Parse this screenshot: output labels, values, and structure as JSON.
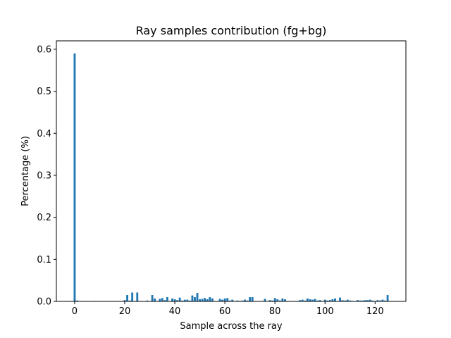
{
  "chart_data": {
    "type": "bar",
    "title": "Ray samples contribution (fg+bg)",
    "xlabel": "Sample across the ray",
    "ylabel": "Percentage (%)",
    "xlim": [
      -7.3,
      132.3
    ],
    "ylim": [
      0,
      0.62
    ],
    "xticks": [
      0,
      20,
      40,
      60,
      80,
      100,
      120
    ],
    "yticks": [
      0.0,
      0.1,
      0.2,
      0.3,
      0.4,
      0.5,
      0.6
    ],
    "xtick_labels": [
      "0",
      "20",
      "40",
      "60",
      "80",
      "100",
      "120"
    ],
    "ytick_labels": [
      "0.0",
      "0.1",
      "0.2",
      "0.3",
      "0.4",
      "0.5",
      "0.6"
    ],
    "bar_color": "#1f77b4",
    "grid": false,
    "legend": "none",
    "x": [
      0,
      1,
      2,
      3,
      4,
      5,
      6,
      7,
      8,
      9,
      10,
      11,
      12,
      13,
      14,
      15,
      16,
      17,
      18,
      19,
      20,
      21,
      22,
      23,
      24,
      25,
      26,
      27,
      28,
      29,
      30,
      31,
      32,
      33,
      34,
      35,
      36,
      37,
      38,
      39,
      40,
      41,
      42,
      43,
      44,
      45,
      46,
      47,
      48,
      49,
      50,
      51,
      52,
      53,
      54,
      55,
      56,
      57,
      58,
      59,
      60,
      61,
      62,
      63,
      64,
      65,
      66,
      67,
      68,
      69,
      70,
      71,
      72,
      73,
      74,
      75,
      76,
      77,
      78,
      79,
      80,
      81,
      82,
      83,
      84,
      85,
      86,
      87,
      88,
      89,
      90,
      91,
      92,
      93,
      94,
      95,
      96,
      97,
      98,
      99,
      100,
      101,
      102,
      103,
      104,
      105,
      106,
      107,
      108,
      109,
      110,
      111,
      112,
      113,
      114,
      115,
      116,
      117,
      118,
      119,
      120,
      121,
      122,
      123,
      124,
      125
    ],
    "values": [
      0.59,
      0.002,
      0,
      0,
      0,
      0,
      0,
      0,
      0.001,
      0,
      0,
      0,
      0,
      0,
      0,
      0,
      0,
      0.001,
      0,
      0,
      0.003,
      0.015,
      0.002,
      0.021,
      0.001,
      0.021,
      0,
      0,
      0,
      0.002,
      0,
      0.015,
      0.007,
      0,
      0.006,
      0.008,
      0.003,
      0.01,
      0,
      0.007,
      0.005,
      0.003,
      0.009,
      0.002,
      0.004,
      0.004,
      0.002,
      0.014,
      0.01,
      0.02,
      0.005,
      0.006,
      0.008,
      0.005,
      0.01,
      0.007,
      0,
      0,
      0.006,
      0.004,
      0.007,
      0.008,
      0.002,
      0.004,
      0,
      0.002,
      0.001,
      0.002,
      0.004,
      0.002,
      0.01,
      0.01,
      0,
      0,
      0,
      0.001,
      0.006,
      0,
      0.003,
      0.002,
      0.008,
      0.005,
      0.002,
      0.007,
      0.005,
      0.001,
      0,
      0.001,
      0,
      0.001,
      0.003,
      0.004,
      0.002,
      0.007,
      0.005,
      0.004,
      0.006,
      0.002,
      0.003,
      0,
      0.004,
      0.002,
      0.003,
      0.005,
      0.007,
      0,
      0.009,
      0.003,
      0.002,
      0.004,
      0.002,
      0.001,
      0,
      0.003,
      0.002,
      0.002,
      0.003,
      0.003,
      0.004,
      0.002,
      0,
      0.003,
      0.002,
      0.004,
      0.002,
      0.015
    ]
  }
}
